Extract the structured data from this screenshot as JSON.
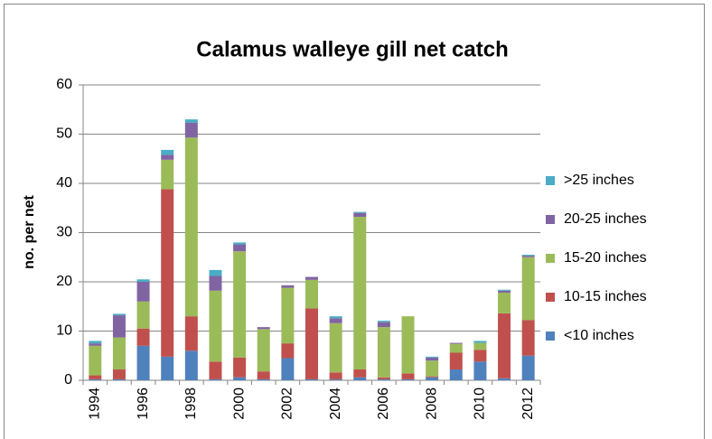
{
  "chart_data": {
    "type": "stacked_bar",
    "title": "Calamus walleye gill net catch",
    "y_label": "no. per net",
    "categories": [
      "1994",
      null,
      "1996",
      null,
      "1998",
      null,
      "2000",
      null,
      "2002",
      null,
      "2004",
      null,
      "2006",
      null,
      "2008",
      null,
      "2010",
      null,
      "2012"
    ],
    "series": [
      {
        "name": "<10 inches",
        "color": "#4f81bd",
        "values": [
          0.2,
          0.2,
          7,
          4.8,
          6,
          0.2,
          0.6,
          0.2,
          4.5,
          0.2,
          0.2,
          0.6,
          0.2,
          0.2,
          0.6,
          2.2,
          3.8,
          0.4,
          5
        ]
      },
      {
        "name": "10-15 inches",
        "color": "#c0504d",
        "values": [
          0.8,
          2,
          3.5,
          34,
          7,
          3.6,
          4,
          1.6,
          3,
          14.4,
          1.4,
          1.6,
          0.4,
          1.2,
          0.2,
          3.4,
          2.4,
          13.2,
          7.2
        ]
      },
      {
        "name": "15-20 inches",
        "color": "#9bbb59",
        "values": [
          6,
          6.5,
          5.5,
          6,
          36.3,
          14.4,
          21.6,
          8.6,
          11.3,
          5.8,
          10,
          31,
          10.2,
          11.6,
          3.2,
          1.8,
          1.4,
          4.2,
          12.8
        ]
      },
      {
        "name": "20-25 inches",
        "color": "#8064a2",
        "values": [
          0.5,
          4.5,
          4,
          1,
          3,
          3,
          1.4,
          0.4,
          0.5,
          0.6,
          1,
          0.8,
          1,
          0,
          0.6,
          0.2,
          0,
          0.4,
          0.3
        ]
      },
      {
        "name": ">25 inches",
        "color": "#4bacc6",
        "values": [
          0.5,
          0.3,
          0.5,
          1,
          0.7,
          1.2,
          0.4,
          0,
          0,
          0,
          0.4,
          0.2,
          0.3,
          0,
          0.2,
          0,
          0.4,
          0.2,
          0.2
        ]
      }
    ],
    "ylim": [
      0,
      60
    ],
    "yticks": [
      0,
      10,
      20,
      30,
      40,
      50,
      60
    ],
    "grid": true,
    "legend": "right"
  }
}
